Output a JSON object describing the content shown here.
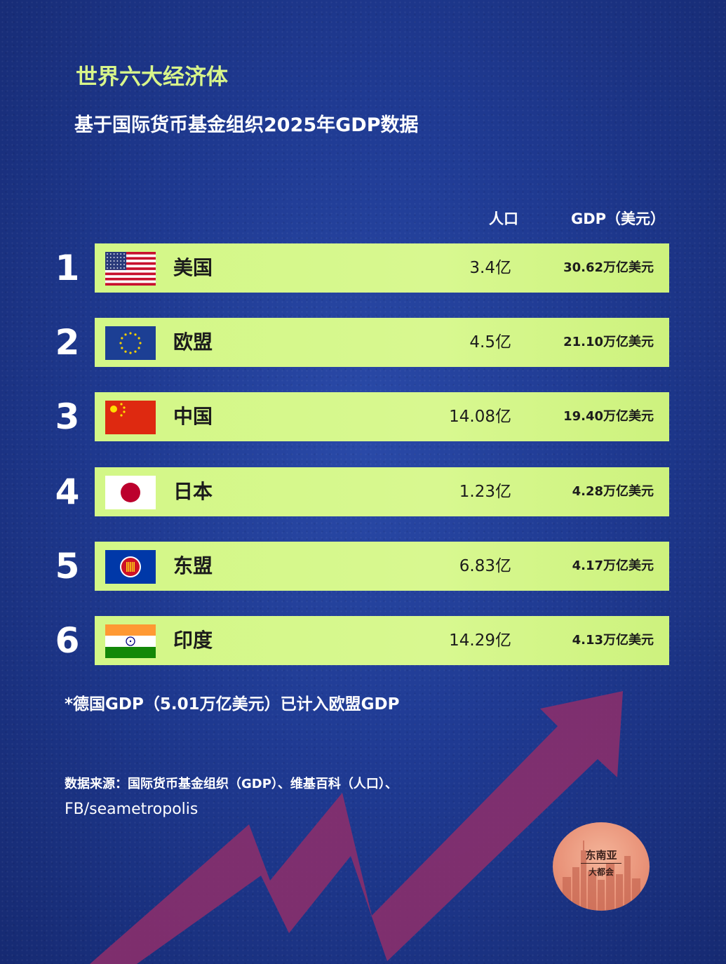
{
  "title": "世界六大经济体",
  "subtitle": "基于国际货币基金组织2025年GDP数据",
  "columns": {
    "population": "人口",
    "gdp": "GDP（美元）"
  },
  "chart_data": {
    "type": "table",
    "title": "世界六大经济体",
    "subtitle": "基于国际货币基金组织2025年GDP数据",
    "columns": [
      "人口",
      "GDP（美元）"
    ],
    "rows": [
      {
        "rank": "1",
        "name": "美国",
        "flag": "usa-flag-icon",
        "population": "3.4亿",
        "gdp": "30.62万亿美元",
        "gdp_value": 30.62,
        "population_value": 3.4
      },
      {
        "rank": "2",
        "name": "欧盟",
        "flag": "eu-flag-icon",
        "population": "4.5亿",
        "gdp": "21.10万亿美元",
        "gdp_value": 21.1,
        "population_value": 4.5
      },
      {
        "rank": "3",
        "name": "中国",
        "flag": "china-flag-icon",
        "population": "14.08亿",
        "gdp": "19.40万亿美元",
        "gdp_value": 19.4,
        "population_value": 14.08
      },
      {
        "rank": "4",
        "name": "日本",
        "flag": "japan-flag-icon",
        "population": "1.23亿",
        "gdp": "4.28万亿美元",
        "gdp_value": 4.28,
        "population_value": 1.23
      },
      {
        "rank": "5",
        "name": "东盟",
        "flag": "asean-flag-icon",
        "population": "6.83亿",
        "gdp": "4.17万亿美元",
        "gdp_value": 4.17,
        "population_value": 6.83
      },
      {
        "rank": "6",
        "name": "印度",
        "flag": "india-flag-icon",
        "population": "14.29亿",
        "gdp": "4.13万亿美元",
        "gdp_value": 4.13,
        "population_value": 14.29
      }
    ]
  },
  "footnote": "*德国GDP（5.01万亿美元）已计入欧盟GDP",
  "source_line1": "数据来源：国际货币基金组织（GDP）、维基百科（人口）、",
  "source_line2": "FB/seametropolis",
  "logo": {
    "line1": "东南亚",
    "line2": "大都会"
  },
  "colors": {
    "background": "#1f3a92",
    "row_fill": "#d6f78a",
    "title": "#d8f58a",
    "arrow": "#8a2f6b",
    "logo": "#e99379"
  },
  "decorations": {
    "arrow": "trend-arrow-icon",
    "logo": "seametropolis-logo"
  }
}
